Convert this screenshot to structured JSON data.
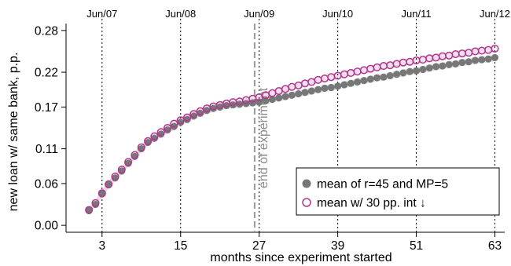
{
  "chart_data": {
    "type": "scatter",
    "xlabel": "months since experiment started",
    "ylabel": "new loan w/ same bank, p.p.",
    "xlim": [
      -2.5,
      64.5
    ],
    "ylim": [
      -0.01,
      0.29
    ],
    "x_ticks": [
      3,
      15,
      27,
      39,
      51,
      63
    ],
    "y_ticks": [
      0.0,
      0.06,
      0.11,
      0.17,
      0.22,
      0.28
    ],
    "y_tick_labels": [
      "0.00",
      "0.06",
      "0.11",
      "0.17",
      "0.22",
      "0.28"
    ],
    "top_ticks": [
      {
        "x": 3,
        "label": "Jun/07"
      },
      {
        "x": 15,
        "label": "Jun/08"
      },
      {
        "x": 27,
        "label": "Jun/09"
      },
      {
        "x": 39,
        "label": "Jun/10"
      },
      {
        "x": 51,
        "label": "Jun/11"
      },
      {
        "x": 63,
        "label": "Jun/12"
      }
    ],
    "vertical_marker": {
      "x": 26.3,
      "label": "end of experiment"
    },
    "legend_position": "bottom-right",
    "x": [
      1,
      2,
      3,
      4,
      5,
      6,
      7,
      8,
      9,
      10,
      11,
      12,
      13,
      14,
      15,
      16,
      17,
      18,
      19,
      20,
      21,
      22,
      23,
      24,
      25,
      26,
      27,
      28,
      29,
      30,
      31,
      32,
      33,
      34,
      35,
      36,
      37,
      38,
      39,
      40,
      41,
      42,
      43,
      44,
      45,
      46,
      47,
      48,
      49,
      50,
      51,
      52,
      53,
      54,
      55,
      56,
      57,
      58,
      59,
      60,
      61,
      62,
      63
    ],
    "series": [
      {
        "name": "mean of r=45 and MP=5",
        "color": "#777777",
        "marker": "filled-circle",
        "values": [
          0.021,
          0.03,
          0.045,
          0.058,
          0.068,
          0.078,
          0.089,
          0.099,
          0.11,
          0.119,
          0.125,
          0.131,
          0.137,
          0.142,
          0.148,
          0.152,
          0.157,
          0.161,
          0.165,
          0.168,
          0.17,
          0.172,
          0.173,
          0.174,
          0.175,
          0.176,
          0.177,
          0.179,
          0.181,
          0.183,
          0.185,
          0.187,
          0.189,
          0.191,
          0.193,
          0.195,
          0.197,
          0.198,
          0.2,
          0.202,
          0.204,
          0.206,
          0.208,
          0.21,
          0.212,
          0.213,
          0.215,
          0.217,
          0.219,
          0.221,
          0.222,
          0.224,
          0.226,
          0.228,
          0.229,
          0.231,
          0.232,
          0.234,
          0.235,
          0.237,
          0.238,
          0.239,
          0.241
        ]
      },
      {
        "name": "mean w/ 30 pp. int ↓",
        "color": "#b0388f",
        "marker": "hollow-circle",
        "values": [
          0.022,
          0.032,
          0.046,
          0.059,
          0.07,
          0.08,
          0.091,
          0.101,
          0.112,
          0.121,
          0.128,
          0.134,
          0.14,
          0.146,
          0.151,
          0.155,
          0.16,
          0.164,
          0.168,
          0.171,
          0.173,
          0.175,
          0.177,
          0.178,
          0.18,
          0.182,
          0.184,
          0.187,
          0.19,
          0.193,
          0.196,
          0.199,
          0.201,
          0.204,
          0.206,
          0.209,
          0.211,
          0.213,
          0.215,
          0.217,
          0.219,
          0.221,
          0.223,
          0.225,
          0.227,
          0.229,
          0.23,
          0.232,
          0.234,
          0.235,
          0.237,
          0.238,
          0.24,
          0.241,
          0.243,
          0.244,
          0.246,
          0.247,
          0.248,
          0.25,
          0.251,
          0.252,
          0.254
        ]
      }
    ]
  }
}
